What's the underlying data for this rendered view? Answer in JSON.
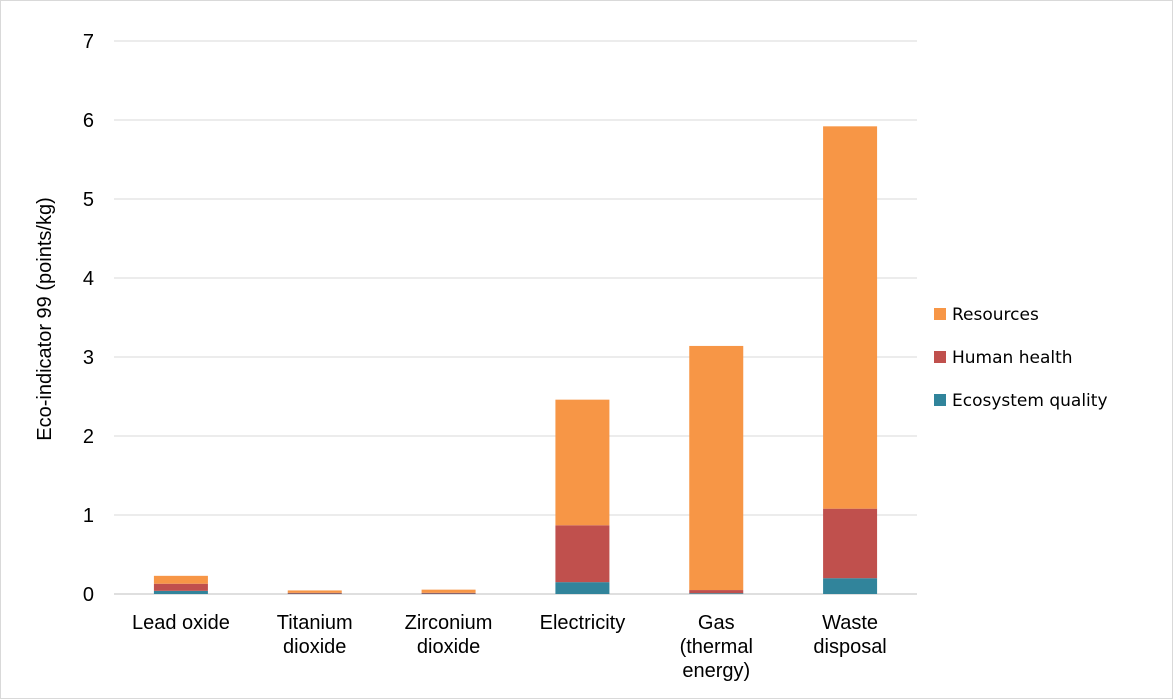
{
  "chart_data": {
    "type": "bar",
    "stacked": true,
    "title": "",
    "xlabel": "",
    "ylabel": "Eco-indicator 99 (points/kg)",
    "ylim": [
      0,
      7
    ],
    "yticks": [
      0,
      1,
      2,
      3,
      4,
      5,
      6,
      7
    ],
    "grid": true,
    "legend_position": "right",
    "categories": [
      [
        "Lead oxide"
      ],
      [
        "Titanium",
        "dioxide"
      ],
      [
        "Zirconium",
        "dioxide"
      ],
      [
        "Electricity"
      ],
      [
        "Gas",
        "(thermal",
        "energy)"
      ],
      [
        "Waste",
        "disposal"
      ]
    ],
    "series": [
      {
        "name": "Ecosystem quality",
        "color": "#31849b",
        "values": [
          0.04,
          0.005,
          0.005,
          0.15,
          0.01,
          0.2
        ]
      },
      {
        "name": "Human health",
        "color": "#c0504d",
        "values": [
          0.09,
          0.01,
          0.01,
          0.72,
          0.04,
          0.88
        ]
      },
      {
        "name": "Resources",
        "color": "#f79646",
        "values": [
          0.1,
          0.03,
          0.04,
          1.59,
          3.09,
          4.84
        ]
      }
    ],
    "legend_order": [
      "Resources",
      "Human health",
      "Ecosystem quality"
    ]
  }
}
